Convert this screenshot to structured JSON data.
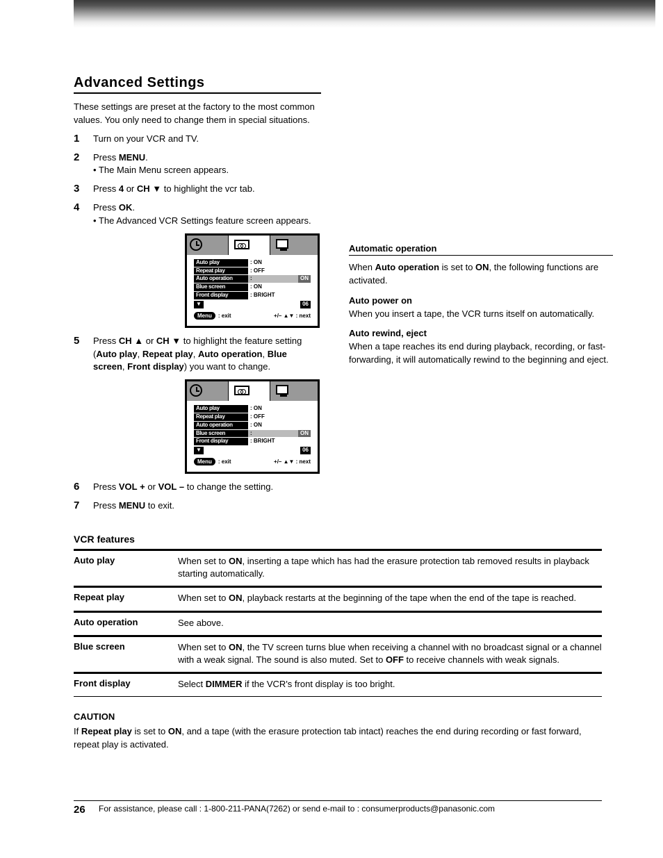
{
  "header_gradient_colors": [
    "#3a3a3a",
    "#ffffff"
  ],
  "section": {
    "heading": "Advanced Settings"
  },
  "intro": "These settings are preset at the factory to the most common values. You only need to change them in special situations.",
  "steps": [
    {
      "num": "1",
      "html": "Turn on your VCR and TV."
    },
    {
      "num": "2",
      "html": "Press <b>MENU</b>.<br>• The Main Menu screen appears."
    },
    {
      "num": "3",
      "html": "Press <b>4</b> or <b>CH&nbsp;▼</b> to highlight the vcr tab."
    },
    {
      "num": "4",
      "html": "Press <b>OK</b>.<br>• The Advanced VCR Settings feature screen appears."
    },
    {
      "num": "5",
      "html": "Press <b>CH&nbsp;▲</b> or <b>CH&nbsp;▼</b> to highlight the feature setting (<b>Auto play</b>, <b>Repeat play</b>, <b>Auto operation</b>, <b>Blue screen</b>, <b>Front display</b>) you want to change."
    },
    {
      "num": "6",
      "html": "Press <b>VOL&nbsp;+</b> or <b>VOL&nbsp;–</b> to change the setting."
    },
    {
      "num": "7",
      "html": "Press <b>MENU</b> to exit."
    }
  ],
  "right_box": {
    "heading": "Automatic operation",
    "body": "When <b>Auto operation</b> is set to <b>ON</b>, the following functions are activated.",
    "items": [
      {
        "t": "Auto power on",
        "d": "When you insert a tape, the VCR turns itself on automatically."
      },
      {
        "t": "Auto rewind, eject",
        "d": "When a tape reaches its end during playback, recording, or fast-forwarding, it will automatically rewind to the beginning and eject."
      }
    ]
  },
  "osd_common": {
    "tabs": {
      "clock": "",
      "tape": "",
      "tv": ""
    },
    "rows_labels": [
      "Auto play",
      "Repeat play",
      "Auto operation",
      "Blue screen",
      "Front display"
    ],
    "footer_left_button": "Menu",
    "footer_left_text": ": exit",
    "footer_right": "+/–  ▲▼ : next"
  },
  "osd1": {
    "active_tab": 1,
    "highlight_row_index": 2,
    "values": [
      "ON",
      "OFF",
      "ON",
      "ON",
      "BRIGHT"
    ],
    "highlight_value": "ON",
    "right_corner": "06"
  },
  "osd2": {
    "active_tab": 1,
    "highlight_row_index": 3,
    "values": [
      "ON",
      "OFF",
      "ON",
      "ON",
      "BRIGHT"
    ],
    "highlight_value": "ON",
    "right_corner": "06"
  },
  "features_heading": "VCR features",
  "features": [
    {
      "label": "Auto play",
      "desc": "When set to <b>ON</b>, inserting a tape which has had the erasure protection tab removed results in playback starting automatically."
    },
    {
      "label": "Repeat play",
      "desc": "When set to <b>ON</b>, playback restarts at the beginning of the tape when the end of the tape is reached."
    },
    {
      "label": "Auto operation",
      "desc": "See above."
    },
    {
      "label": "Blue screen",
      "desc": "When set to <b>ON</b>, the TV screen turns blue when receiving a channel with no broadcast signal or a channel with a weak signal. The sound is also muted. Set to <b>OFF</b> to receive channels with weak signals."
    },
    {
      "label": "Front display",
      "desc": "Select <b>DIMMER</b> if the VCR's front display is too bright."
    }
  ],
  "caution": {
    "title": "CAUTION",
    "body": "If <b>Repeat play</b> is set to <b>ON</b>, and a tape (with the erasure protection tab intact) reaches the end during recording or fast forward, repeat play is activated."
  },
  "footer": {
    "page_number": "26",
    "text": "For assistance, please call : 1-800-211-PANA(7262) or send e-mail to : consumerproducts@panasonic.com"
  }
}
